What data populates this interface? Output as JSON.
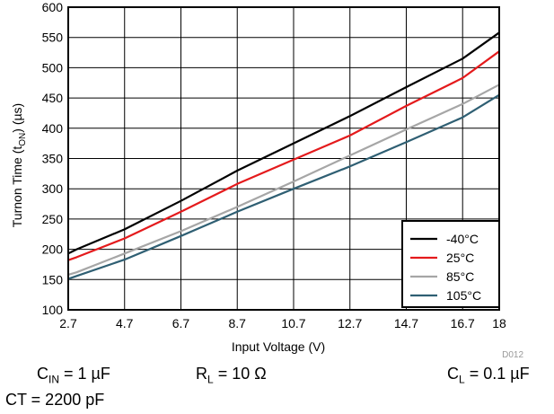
{
  "chart_data": {
    "type": "line",
    "xlabel": "Input Voltage (V)",
    "ylabel_main": "Turnon Time (t",
    "ylabel_sub": "ON",
    "ylabel_tail": ") (µs)",
    "xticks": [
      2.7,
      4.7,
      6.7,
      8.7,
      10.7,
      12.7,
      14.7,
      16.7,
      18
    ],
    "xtick_labels": [
      "2.7",
      "4.7",
      "6.7",
      "8.7",
      "10.7",
      "12.7",
      "14.7",
      "16.7",
      "18"
    ],
    "yticks": [
      100,
      150,
      200,
      250,
      300,
      350,
      400,
      450,
      500,
      550,
      600
    ],
    "ytick_labels": [
      "100",
      "150",
      "200",
      "250",
      "300",
      "350",
      "400",
      "450",
      "500",
      "550",
      "600"
    ],
    "xlim": [
      2.7,
      18
    ],
    "ylim": [
      100,
      600
    ],
    "grid": true,
    "legend_position": "bottom-right",
    "series": [
      {
        "name": "-40°C",
        "color": "#000000",
        "x": [
          2.7,
          3.0,
          4.7,
          6.7,
          8.7,
          10.7,
          12.7,
          14.7,
          16.7,
          18
        ],
        "y": [
          193,
          200,
          233,
          280,
          330,
          375,
          420,
          468,
          515,
          558
        ]
      },
      {
        "name": "25°C",
        "color": "#e41a1c",
        "x": [
          2.7,
          3.0,
          4.7,
          6.7,
          8.7,
          10.7,
          12.7,
          14.7,
          16.7,
          18
        ],
        "y": [
          182,
          187,
          218,
          262,
          308,
          348,
          388,
          437,
          483,
          527
        ]
      },
      {
        "name": "85°C",
        "color": "#a6a6a6",
        "x": [
          2.7,
          3.0,
          4.7,
          6.7,
          8.7,
          10.7,
          12.7,
          14.7,
          16.7,
          18
        ],
        "y": [
          158,
          162,
          193,
          230,
          270,
          312,
          355,
          398,
          440,
          472
        ]
      },
      {
        "name": "105°C",
        "color": "#2f5f73",
        "x": [
          2.7,
          3.0,
          4.7,
          6.7,
          8.7,
          10.7,
          12.7,
          14.7,
          16.7,
          18
        ],
        "y": [
          151,
          156,
          183,
          222,
          262,
          300,
          337,
          377,
          418,
          455
        ]
      }
    ]
  },
  "figure_id": "D012",
  "conditions": {
    "cin_main": "C",
    "cin_sub": "IN",
    "cin_tail": " = 1 µF",
    "rl_main": "R",
    "rl_sub": "L",
    "rl_tail": " = 10 Ω",
    "cl_main": "C",
    "cl_sub": "L",
    "cl_tail": " = 0.1 µF",
    "ct": "CT = 2200 pF"
  }
}
